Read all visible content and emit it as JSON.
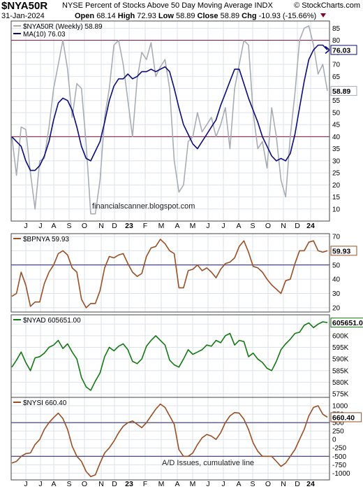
{
  "header": {
    "ticker": "$NYA50R",
    "description": "NYSE Percent of Stocks Above 50 Day Moving Average INDX",
    "brand": "© StockCharts.com",
    "date": "31-Jan-2024",
    "open_label": "Open",
    "open": "68.14",
    "high_label": "High",
    "high": "72.93",
    "low_label": "Low",
    "low": "58.89",
    "close_label": "Close",
    "close": "58.89",
    "chg_label": "Chg",
    "chg": "-10.93 (-15.66%)"
  },
  "watermark": "financialscanner.blogspot.com",
  "annotation": "A/D Issues, cumulative line",
  "colors": {
    "price": "#a8adb5",
    "ma": "#0b0b7a",
    "bpnya": "#9a4e24",
    "nyad": "#117a11",
    "nysi": "#9a4e24",
    "hline_top": "#7a1236",
    "hline": "#1a1a6e",
    "grid": "#dde3ea"
  },
  "chart_data": [
    {
      "type": "line",
      "name": "NYA50R panel",
      "ylim": [
        5,
        88
      ],
      "yticks": [
        10,
        15,
        20,
        25,
        30,
        35,
        40,
        45,
        50,
        55,
        60,
        65,
        70,
        75,
        80,
        85
      ],
      "hlines": [
        40,
        80
      ],
      "series": [
        {
          "name": "$NYA50R (Weekly) 58.89",
          "last": "58.89",
          "values": [
            40,
            24,
            44,
            43,
            25,
            10,
            30,
            31,
            44,
            60,
            70,
            80,
            68,
            48,
            62,
            60,
            37,
            8,
            8,
            22,
            48,
            60,
            78,
            80,
            70,
            55,
            40,
            64,
            75,
            72,
            79,
            65,
            69,
            72,
            60,
            30,
            17,
            20,
            38,
            40,
            50,
            42,
            45,
            48,
            40,
            45,
            52,
            35,
            60,
            70,
            80,
            78,
            50,
            35,
            38,
            27,
            52,
            40,
            22,
            15,
            40,
            58,
            80,
            85,
            86,
            78,
            66,
            70,
            59
          ]
        },
        {
          "name": "MA(10) 76.03",
          "last": "76.03",
          "values": [
            40,
            38,
            36,
            30,
            26,
            26,
            28,
            32,
            38,
            47,
            54,
            56,
            55,
            51,
            44,
            36,
            31,
            30,
            34,
            38,
            46,
            55,
            61,
            64,
            64,
            66,
            64,
            65,
            67,
            67,
            68,
            67,
            68,
            69,
            67,
            60,
            52,
            45,
            41,
            37,
            35,
            38,
            41,
            44,
            47,
            53,
            58,
            63,
            68,
            68,
            62,
            56,
            51,
            46,
            40,
            36,
            32,
            30,
            31,
            30,
            33,
            41,
            52,
            63,
            72,
            76,
            78,
            78,
            76
          ]
        }
      ]
    },
    {
      "type": "line",
      "name": "BPNYA panel",
      "ylim": [
        17,
        72
      ],
      "yticks": [
        20,
        30,
        40,
        50,
        60,
        70
      ],
      "hlines": [
        50
      ],
      "series": [
        {
          "name": "$BPNYA 59.93",
          "last": "59.93",
          "values": [
            28,
            30,
            45,
            36,
            21,
            24,
            24,
            37,
            45,
            50,
            58,
            60,
            57,
            48,
            45,
            26,
            20,
            23,
            23,
            32,
            48,
            56,
            55,
            57,
            58,
            51,
            45,
            42,
            44,
            56,
            62,
            63,
            68,
            65,
            60,
            58,
            34,
            34,
            46,
            47,
            50,
            46,
            48,
            45,
            41,
            47,
            51,
            52,
            55,
            63,
            67,
            59,
            49,
            48,
            45,
            40,
            36,
            33,
            30,
            39,
            40,
            51,
            60,
            60,
            66,
            67,
            60,
            59,
            60
          ]
        }
      ]
    },
    {
      "type": "line",
      "name": "NYAD panel",
      "ylim": [
        573500,
        609000
      ],
      "yticks": [
        575000,
        580000,
        585000,
        590000,
        595000,
        600000,
        605000
      ],
      "yticklabels": [
        "575K",
        "580K",
        "585K",
        "590K",
        "595K",
        "600K",
        "605K"
      ],
      "series": [
        {
          "name": "$NYAD 605651.00",
          "last": "605651.0",
          "values": [
            586500,
            589500,
            593000,
            588500,
            585000,
            590500,
            591000,
            592500,
            595000,
            596000,
            598000,
            594500,
            596500,
            593000,
            590000,
            582000,
            578000,
            576500,
            580500,
            584000,
            591000,
            595000,
            593500,
            595500,
            596500,
            594000,
            589000,
            588000,
            590000,
            595500,
            598000,
            600000,
            598000,
            596000,
            589500,
            587500,
            586500,
            590000,
            594000,
            592000,
            593000,
            594000,
            596000,
            595500,
            598000,
            597000,
            600000,
            601000,
            596000,
            598000,
            597500,
            591000,
            592500,
            590000,
            588500,
            586000,
            585000,
            589000,
            594000,
            596500,
            598500,
            601000,
            601500,
            604500,
            605500,
            603500,
            605000,
            606000,
            605651
          ]
        }
      ]
    },
    {
      "type": "line",
      "name": "NYSI panel",
      "ylim": [
        -1200,
        1250
      ],
      "yticks": [
        -1000,
        -750,
        -500,
        -250,
        0,
        250,
        500,
        750,
        1000
      ],
      "hlines": [
        500,
        -500
      ],
      "series": [
        {
          "name": "$NYSI 660.40",
          "last": "660.40",
          "values": [
            -700,
            -650,
            -500,
            -420,
            -400,
            -150,
            0,
            300,
            500,
            650,
            780,
            620,
            300,
            -200,
            -500,
            -650,
            -950,
            -1100,
            -1050,
            -700,
            -400,
            -250,
            -50,
            200,
            390,
            500,
            550,
            450,
            350,
            500,
            700,
            900,
            1050,
            950,
            700,
            450,
            -300,
            -500,
            -500,
            -400,
            -150,
            50,
            150,
            100,
            0,
            200,
            500,
            700,
            800,
            780,
            600,
            300,
            -100,
            -350,
            -500,
            -500,
            -500,
            -650,
            -800,
            -700,
            -500,
            -300,
            0,
            300,
            700,
            950,
            1000,
            750,
            660
          ]
        }
      ]
    }
  ],
  "x_axis": {
    "labels": [
      "J",
      "J",
      "A",
      "S",
      "O",
      "N",
      "D",
      "23",
      "F",
      "M",
      "A",
      "M",
      "J",
      "J",
      "A",
      "S",
      "O",
      "N",
      "D",
      "24"
    ],
    "bold": [
      "23",
      "24"
    ]
  }
}
